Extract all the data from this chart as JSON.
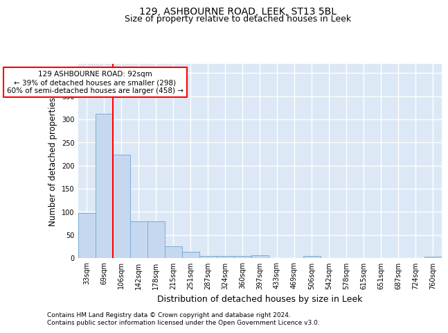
{
  "title": "129, ASHBOURNE ROAD, LEEK, ST13 5BL",
  "subtitle": "Size of property relative to detached houses in Leek",
  "xlabel": "Distribution of detached houses by size in Leek",
  "ylabel": "Number of detached properties",
  "categories": [
    "33sqm",
    "69sqm",
    "106sqm",
    "142sqm",
    "178sqm",
    "215sqm",
    "251sqm",
    "287sqm",
    "324sqm",
    "360sqm",
    "397sqm",
    "433sqm",
    "469sqm",
    "506sqm",
    "542sqm",
    "578sqm",
    "615sqm",
    "651sqm",
    "687sqm",
    "724sqm",
    "760sqm"
  ],
  "values": [
    98,
    312,
    224,
    80,
    80,
    25,
    13,
    5,
    4,
    4,
    6,
    0,
    0,
    4,
    0,
    0,
    0,
    0,
    0,
    0,
    3
  ],
  "bar_color": "#c5d8f0",
  "bar_edge_color": "#7aadd4",
  "red_line_x": 2.0,
  "annotation_line1": "129 ASHBOURNE ROAD: 92sqm",
  "annotation_line2": "← 39% of detached houses are smaller (298)",
  "annotation_line3": "60% of semi-detached houses are larger (458) →",
  "footer_line1": "Contains HM Land Registry data © Crown copyright and database right 2024.",
  "footer_line2": "Contains public sector information licensed under the Open Government Licence v3.0.",
  "ylim": [
    0,
    420
  ],
  "yticks": [
    0,
    50,
    100,
    150,
    200,
    250,
    300,
    350,
    400
  ],
  "bg_color": "#ffffff",
  "plot_bg_color": "#dce8f5",
  "grid_color": "#ffffff",
  "title_fontsize": 10,
  "subtitle_fontsize": 9,
  "tick_fontsize": 7,
  "ylabel_fontsize": 8.5,
  "xlabel_fontsize": 9,
  "footer_fontsize": 6.5
}
